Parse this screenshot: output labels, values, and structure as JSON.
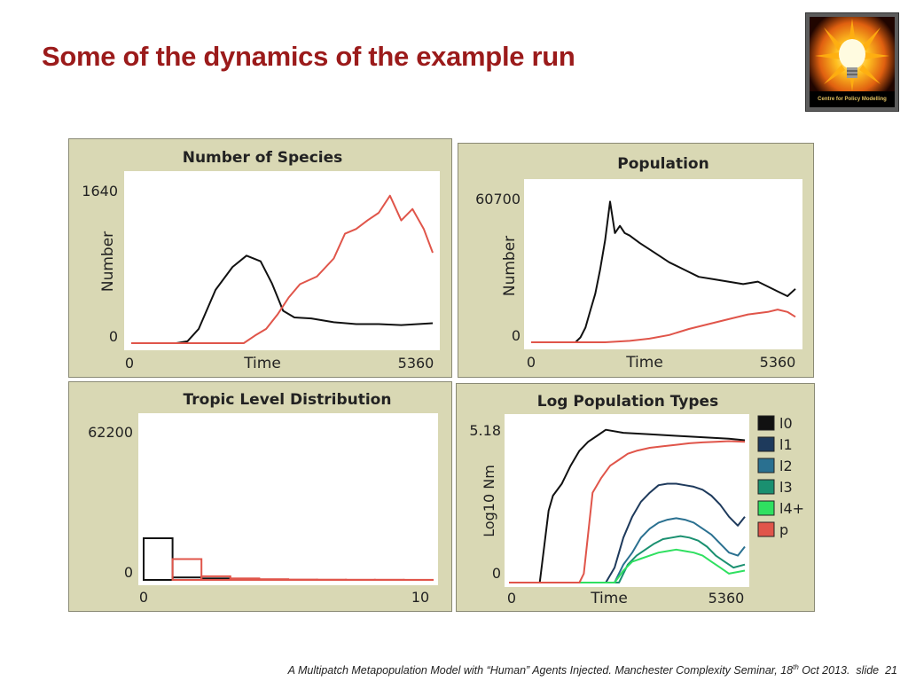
{
  "slide": {
    "title": "Some of the dynamics of the example run",
    "logo_text": "Centre for Policy Modelling",
    "footer_main": "A Multipatch Metapopulation Model with “Human” Agents Injected. Manchester Complexity Seminar, 18",
    "footer_sup": "th",
    "footer_date": " Oct 2013.",
    "footer_slide_label": "slide",
    "footer_page": "21"
  },
  "colors": {
    "black_series": "#111111",
    "red_series": "#e0554a",
    "panel_bg": "#d9d8b4",
    "l1": "#1e3a5c",
    "l2": "#2a7090",
    "l3": "#1a9070",
    "l4": "#2fe060",
    "p": "#e0554a"
  },
  "chart_data": [
    {
      "type": "line",
      "title": "Number of Species",
      "xlabel": "Time",
      "ylabel": "Number",
      "xlim": [
        0,
        5360
      ],
      "ylim": [
        0,
        1640
      ],
      "xticks": [
        "0",
        "5360"
      ],
      "yticks": [
        "0",
        "1640"
      ],
      "series": [
        {
          "color": "#111111",
          "x": [
            0,
            800,
            1000,
            1200,
            1500,
            1800,
            2050,
            2300,
            2500,
            2700,
            2900,
            3200,
            3600,
            4000,
            4400,
            4800,
            5360
          ],
          "y": [
            0,
            0,
            20,
            150,
            560,
            800,
            920,
            860,
            630,
            340,
            270,
            260,
            220,
            200,
            200,
            190,
            210
          ]
        },
        {
          "color": "#e0554a",
          "x": [
            0,
            2000,
            2200,
            2400,
            2600,
            2800,
            3000,
            3300,
            3600,
            3800,
            4000,
            4200,
            4400,
            4600,
            4800,
            5000,
            5200,
            5360
          ],
          "y": [
            0,
            0,
            80,
            150,
            300,
            480,
            620,
            700,
            890,
            1150,
            1200,
            1290,
            1370,
            1550,
            1290,
            1410,
            1200,
            950
          ]
        }
      ]
    },
    {
      "type": "line",
      "title": "Population",
      "xlabel": "Time",
      "ylabel": "Number",
      "xlim": [
        0,
        5360
      ],
      "ylim": [
        0,
        60700
      ],
      "xticks": [
        "0",
        "5360"
      ],
      "yticks": [
        "0",
        "60700"
      ],
      "series": [
        {
          "color": "#111111",
          "x": [
            0,
            900,
            1000,
            1100,
            1200,
            1300,
            1400,
            1500,
            1600,
            1700,
            1800,
            1900,
            2000,
            2200,
            2500,
            2800,
            3100,
            3400,
            3700,
            4000,
            4300,
            4600,
            4800,
            5000,
            5200,
            5360
          ],
          "y": [
            0,
            0,
            2000,
            6000,
            13000,
            20000,
            30000,
            42000,
            58000,
            45000,
            48000,
            45000,
            44000,
            41000,
            37000,
            33000,
            30000,
            27000,
            26000,
            25000,
            24000,
            25000,
            23000,
            21000,
            19000,
            22000
          ]
        },
        {
          "color": "#e0554a",
          "x": [
            0,
            1500,
            2000,
            2400,
            2800,
            3200,
            3600,
            4000,
            4400,
            4800,
            5000,
            5200,
            5360
          ],
          "y": [
            0,
            0,
            600,
            1500,
            3000,
            5500,
            7500,
            9500,
            11500,
            12500,
            13500,
            12500,
            10500
          ]
        }
      ]
    },
    {
      "type": "histogram",
      "title": "Tropic Level Distribution",
      "xlim": [
        0,
        10
      ],
      "ylim": [
        0,
        62200
      ],
      "xticks": [
        "0",
        "10"
      ],
      "yticks": [
        "0",
        "62200"
      ],
      "series": [
        {
          "color": "#111111",
          "bins": [
            0,
            1,
            2,
            3,
            4
          ],
          "values": [
            17000,
            1000,
            600,
            300,
            0
          ]
        },
        {
          "color": "#e0554a",
          "bins": [
            0,
            1,
            2,
            3,
            4,
            5,
            6,
            7,
            8,
            9
          ],
          "values": [
            0,
            8500,
            1500,
            600,
            300,
            150,
            100,
            80,
            60,
            40
          ]
        }
      ]
    },
    {
      "type": "line",
      "title": "Log Population Types",
      "xlabel": "Time",
      "ylabel": "Log10 Nm",
      "xlim": [
        0,
        5360
      ],
      "ylim": [
        0,
        5.18
      ],
      "xticks": [
        "0",
        "5360"
      ],
      "yticks": [
        "0",
        "5.18"
      ],
      "legend_position": "right",
      "series": [
        {
          "name": "l0",
          "color": "#111111",
          "x": [
            0,
            700,
            800,
            900,
            1000,
            1200,
            1400,
            1600,
            1800,
            2000,
            2200,
            2600,
            3200,
            3800,
            4400,
            5000,
            5360
          ],
          "y": [
            0,
            0,
            1.2,
            2.4,
            2.9,
            3.3,
            3.9,
            4.4,
            4.7,
            4.9,
            5.1,
            5.0,
            4.95,
            4.9,
            4.85,
            4.8,
            4.75
          ]
        },
        {
          "name": "l1",
          "color": "#1e3a5c",
          "x": [
            0,
            2200,
            2400,
            2600,
            2800,
            3000,
            3200,
            3400,
            3600,
            3800,
            4000,
            4200,
            4400,
            4600,
            4800,
            5000,
            5200,
            5360
          ],
          "y": [
            0,
            0,
            0.5,
            1.5,
            2.2,
            2.7,
            3.0,
            3.25,
            3.3,
            3.3,
            3.25,
            3.2,
            3.1,
            2.9,
            2.6,
            2.2,
            1.9,
            2.2
          ]
        },
        {
          "name": "l2",
          "color": "#2a7090",
          "x": [
            0,
            2400,
            2600,
            2800,
            3000,
            3200,
            3400,
            3600,
            3800,
            4000,
            4200,
            4400,
            4600,
            4800,
            5000,
            5200,
            5360
          ],
          "y": [
            0,
            0,
            0.6,
            1.0,
            1.5,
            1.8,
            2.0,
            2.1,
            2.15,
            2.1,
            2.0,
            1.8,
            1.6,
            1.3,
            1.0,
            0.9,
            1.2
          ]
        },
        {
          "name": "l3",
          "color": "#1a9070",
          "x": [
            0,
            2500,
            2700,
            2900,
            3100,
            3300,
            3500,
            3700,
            3900,
            4100,
            4300,
            4500,
            4700,
            4900,
            5100,
            5360
          ],
          "y": [
            0,
            0,
            0.6,
            0.9,
            1.1,
            1.3,
            1.45,
            1.5,
            1.55,
            1.5,
            1.4,
            1.2,
            0.9,
            0.7,
            0.5,
            0.6
          ]
        },
        {
          "name": "l4+",
          "color": "#2fe060",
          "x": [
            0,
            2400,
            2600,
            2800,
            3000,
            3200,
            3400,
            3600,
            3800,
            4000,
            4200,
            4400,
            4600,
            4800,
            5000,
            5360
          ],
          "y": [
            0,
            0,
            0.4,
            0.7,
            0.8,
            0.9,
            1.0,
            1.05,
            1.1,
            1.05,
            1.0,
            0.9,
            0.7,
            0.5,
            0.3,
            0.4
          ]
        },
        {
          "name": "p",
          "color": "#e0554a",
          "x": [
            0,
            1600,
            1700,
            1900,
            2100,
            2300,
            2500,
            2700,
            2900,
            3200,
            3500,
            3800,
            4100,
            4400,
            4700,
            5000,
            5360
          ],
          "y": [
            0,
            0,
            0.3,
            3.0,
            3.5,
            3.9,
            4.1,
            4.3,
            4.4,
            4.5,
            4.55,
            4.6,
            4.65,
            4.68,
            4.7,
            4.72,
            4.7
          ]
        }
      ]
    }
  ]
}
